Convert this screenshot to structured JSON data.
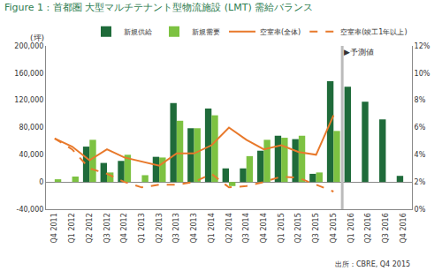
{
  "chart_data": {
    "type": "bar",
    "title": "Figure 1 : 首都圏 大型マルチテナント型物流施設 (LMT) 需給バランス",
    "y_label": "(坪)",
    "source": "出所：CBRE, Q4 2015",
    "annotations": [
      {
        "text": "▶予測値",
        "x": "Q1 2016"
      }
    ],
    "categories": [
      "Q4 2011",
      "Q1 2012",
      "Q2 2012",
      "Q3 2012",
      "Q4 2012",
      "Q1 2013",
      "Q2 2013",
      "Q3 2013",
      "Q4 2013",
      "Q1 2014",
      "Q2 2014",
      "Q3 2014",
      "Q4 2014",
      "Q1 2015",
      "Q2 2015",
      "Q3 2015",
      "Q4 2015",
      "Q1 2016",
      "Q2 2016",
      "Q3 2016",
      "Q4 2016"
    ],
    "series": [
      {
        "name": "新規供給",
        "type": "bar",
        "color": "#1f6b3a",
        "values": [
          0,
          0,
          52000,
          28000,
          31000,
          0,
          37000,
          116000,
          79000,
          108000,
          20000,
          20000,
          46000,
          68000,
          63000,
          12000,
          148000,
          140000,
          118000,
          92000,
          9000
        ]
      },
      {
        "name": "新規需要",
        "type": "bar",
        "color": "#7dc242",
        "values": [
          4000,
          8000,
          62000,
          14000,
          40000,
          10000,
          36000,
          90000,
          79000,
          98000,
          -6000,
          38000,
          62000,
          65000,
          68000,
          14000,
          75000,
          null,
          null,
          null,
          null
        ]
      },
      {
        "name": "空室率(全体)",
        "type": "line",
        "axis": "y2",
        "color": "#e8792b",
        "line_style": "solid",
        "values": [
          5.2,
          4.6,
          3.6,
          4.4,
          3.8,
          3.5,
          3.2,
          4.1,
          4.1,
          4.7,
          6.0,
          5.1,
          4.4,
          4.7,
          4.2,
          4.0,
          6.9,
          null,
          null,
          null,
          null
        ]
      },
      {
        "name": "空室率(竣工1年以上)",
        "type": "line",
        "axis": "y2",
        "color": "#e8792b",
        "line_style": "dashed",
        "values": [
          5.2,
          4.4,
          3.0,
          2.6,
          2.0,
          1.6,
          1.8,
          1.8,
          2.0,
          2.6,
          1.6,
          1.7,
          2.0,
          2.4,
          2.3,
          1.8,
          1.3,
          null,
          null,
          null,
          null
        ]
      }
    ],
    "ylim": [
      -40000,
      200000
    ],
    "yticks": [
      {
        "value": -40000,
        "label": "-40,000"
      },
      0,
      {
        "value": 40000,
        "label": "40,000"
      },
      {
        "value": 80000,
        "label": "80,000"
      },
      {
        "value": 120000,
        "label": "120,000"
      },
      {
        "value": 160000,
        "label": "160,000"
      },
      {
        "value": 200000,
        "label": "200,000"
      }
    ],
    "y2lim": [
      0,
      12
    ],
    "y2ticks": [
      {
        "value": 0,
        "label": "0%"
      },
      {
        "value": 2,
        "label": "2%"
      },
      {
        "value": 4,
        "label": "4%"
      },
      {
        "value": 6,
        "label": "6%"
      },
      {
        "value": 8,
        "label": "8%"
      },
      {
        "value": 10,
        "label": "10%"
      },
      {
        "value": 12,
        "label": "12%"
      }
    ],
    "grid": false,
    "legend": "top right"
  }
}
